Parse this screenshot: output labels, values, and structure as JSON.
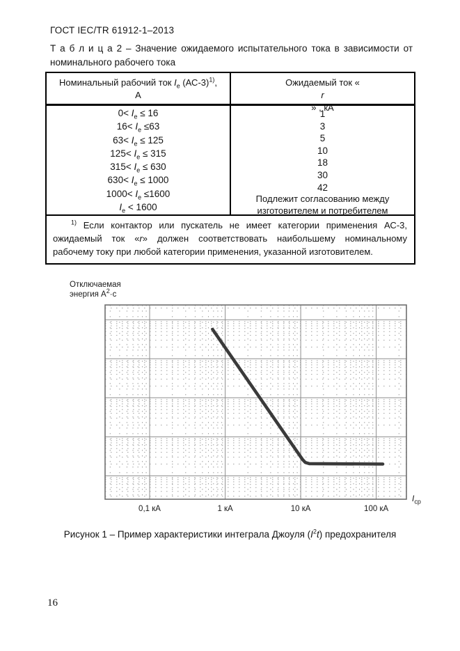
{
  "page": {
    "header": "ГОСТ IEC/TR 61912-1–2013",
    "page_number": "16"
  },
  "table": {
    "title": "Т а б л и ц а   2 – Значение ожидаемого испытательного тока в зависимости от номинального рабочего тока",
    "col1_header_line1": "Номинальный рабочий ток {i:I}{sub:e} (АС-3){sup:1)},",
    "col1_header_line2": "А",
    "col2_header": "Ожидаемый ток «{i:r}» , кА",
    "ranges": [
      "0< {i:I}{sub:e} ≤ 16",
      "16< {i:I}{sub:e} ≤63",
      "63< {i:I}{sub:e} ≤ 125",
      "125< {i:I}{sub:e} ≤ 315",
      "315< {i:I}{sub:e} ≤ 630",
      "630< {i:I}{sub:e} ≤ 1000",
      "1000< {i:I}{sub:e} ≤1600",
      "{i:I}{sub:e} < 1600"
    ],
    "values": [
      "1",
      "3",
      "5",
      "10",
      "18",
      "30",
      "42"
    ],
    "agreement_text": "Подлежит согласованию между изготовителем и потребителем",
    "footnote": "{sup:1)} Если контактор или пускатель не имеет категории применения АС-3, ожидаемый ток «{i:r}»  должен соответствовать наибольшему номинальному рабочему току при любой категории применения, указанной изготовителем."
  },
  "chart_data": {
    "type": "line",
    "title": "",
    "ylabel_line1": "Отключаемая",
    "ylabel_line2": "энергия  А{sup:2}·с",
    "xlabel": "{i:I}{sub:ср}",
    "x_scale": "log",
    "y_scale": "log",
    "x_unit": "кА",
    "x_ticks": [
      {
        "value": 0.1,
        "label": "0,1 кА"
      },
      {
        "value": 1,
        "label": "1 кА"
      },
      {
        "value": 10,
        "label": "10 кА"
      },
      {
        "value": 100,
        "label": "100 кА"
      }
    ],
    "x_range_kA": [
      0.0257,
      251
    ],
    "y_ticks_labeled": false,
    "y_axis_note": "логарифмическая ось без числовых подписей, относительные единицы",
    "y_range_relative": [
      0.251,
      24000
    ],
    "y_major_gridlines_relative": [
      1,
      10,
      100,
      1000,
      10000
    ],
    "grid": "major solid, minor dotted",
    "legend": "none",
    "series": [
      {
        "name": "Характеристика интеграла Джоуля (I²t) предохранителя",
        "points_x_kA_y_rel": [
          [
            0.68,
            5700
          ],
          [
            10.6,
            2.6
          ],
          [
            11.5,
            2.2
          ],
          [
            13,
            2.05
          ],
          [
            122,
            2.0
          ]
        ]
      }
    ]
  },
  "figure": {
    "caption": "Рисунок 1 – Пример характеристики интеграла Джоуля  ({i:I}{sup:2}{i:t}) предохранителя"
  }
}
